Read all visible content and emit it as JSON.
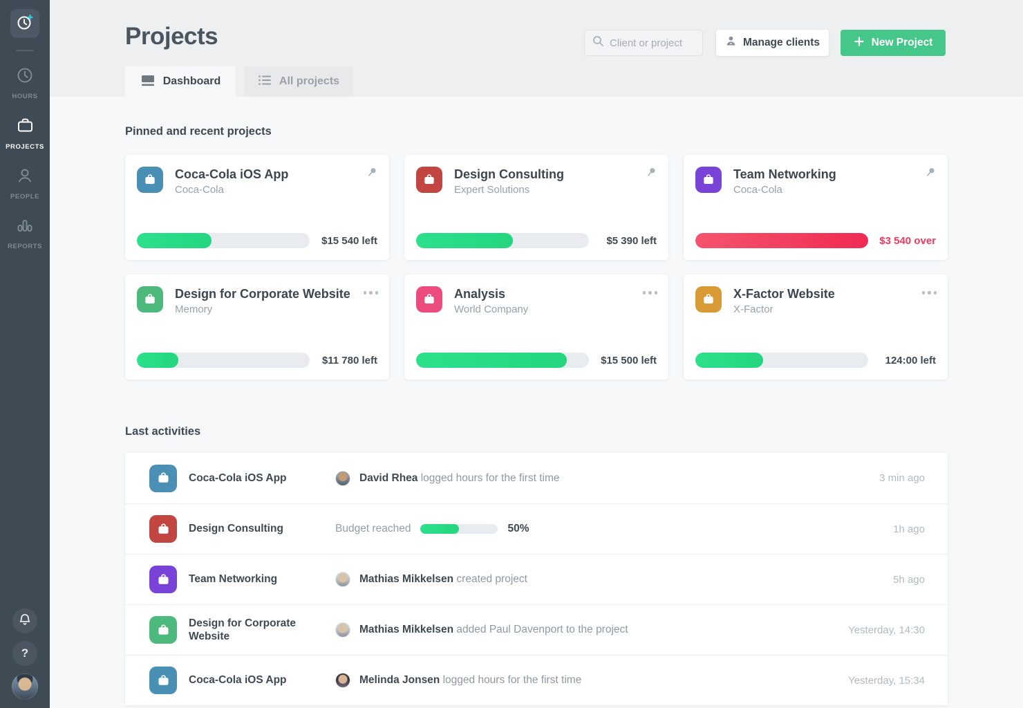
{
  "colors": {
    "sidebar_bg": "#3E4A54",
    "accent_green": "#45C789",
    "bar_green": "#29DC87",
    "bar_red": "#F02B53",
    "over_text": "#F23A5E",
    "logo_plus_cyan": "#36C6DD"
  },
  "icons": {
    "logo": "clock-plus-icon",
    "nav": [
      "clock-icon",
      "briefcase-icon",
      "person-icon",
      "bar-chart-icon"
    ],
    "bottom": [
      "bell-icon",
      "question-icon",
      "avatar"
    ],
    "search": "magnifier-icon",
    "manage": "person-icon",
    "new_project": "plus-icon",
    "tab_dashboard": "dashboard-icon",
    "tab_all": "list-icon",
    "card_pin": "pushpin-icon",
    "card_menu": "ellipsis-icon",
    "project_badge": "briefcase-icon"
  },
  "sidebar": {
    "items": [
      {
        "label": "HOURS",
        "active": false
      },
      {
        "label": "PROJECTS",
        "active": true
      },
      {
        "label": "PEOPLE",
        "active": false
      },
      {
        "label": "REPORTS",
        "active": false
      }
    ],
    "help_glyph": "?"
  },
  "header": {
    "title": "Projects",
    "search_placeholder": "Client or project",
    "manage_clients_label": "Manage clients",
    "new_project_label": "New Project"
  },
  "tabs": [
    {
      "label": "Dashboard",
      "active": true
    },
    {
      "label": "All projects",
      "active": false
    }
  ],
  "pinned": {
    "heading": "Pinned and recent projects",
    "cards": [
      {
        "name": "Coca-Cola iOS App",
        "client": "Coca-Cola",
        "icon_color": "#4A90B5",
        "percent": 43,
        "status": "$15 540 left",
        "bar_class": "green",
        "status_class": "left",
        "control": "pin"
      },
      {
        "name": "Design Consulting",
        "client": "Expert Solutions",
        "icon_color": "#C14541",
        "percent": 56,
        "status": "$5 390 left",
        "bar_class": "green",
        "status_class": "left",
        "control": "pin"
      },
      {
        "name": "Team Networking",
        "client": "Coca-Cola",
        "icon_color": "#7A43D8",
        "percent": 100,
        "status": "$3 540 over",
        "bar_class": "red",
        "status_class": "over",
        "control": "pin"
      },
      {
        "name": "Design for Corporate Website",
        "client": "Memory",
        "icon_color": "#4DB97D",
        "percent": 24,
        "status": "$11 780 left",
        "bar_class": "green",
        "status_class": "left",
        "control": "menu"
      },
      {
        "name": "Analysis",
        "client": "World Company",
        "icon_color": "#EC4B7D",
        "percent": 87,
        "status": "$15 500 left",
        "bar_class": "green",
        "status_class": "left",
        "control": "menu"
      },
      {
        "name": "X-Factor Website",
        "client": "X-Factor",
        "icon_color": "#D79A35",
        "percent": 39,
        "status": "124:00 left",
        "bar_class": "green",
        "status_class": "left",
        "control": "menu"
      }
    ]
  },
  "activities": {
    "heading": "Last activities",
    "rows": [
      {
        "project": "Coca-Cola iOS App",
        "icon_color": "#4A90B5",
        "actor": "David Rhea",
        "action": "logged hours for the first time",
        "time": "3 min ago"
      },
      {
        "project": "Design Consulting",
        "icon_color": "#C14541",
        "label": "Budget reached",
        "percent": 50,
        "percent_label": "50%",
        "time": "1h ago"
      },
      {
        "project": "Team Networking",
        "icon_color": "#7A43D8",
        "actor": "Mathias Mikkelsen",
        "action": "created project",
        "time": "5h ago"
      },
      {
        "project": "Design for Corporate Website",
        "icon_color": "#4DB97D",
        "actor": "Mathias Mikkelsen",
        "action": "added Paul Davenport to the project",
        "time": "Yesterday, 14:30"
      },
      {
        "project": "Coca-Cola iOS App",
        "icon_color": "#4A90B5",
        "actor": "Melinda Jonsen",
        "action": "logged hours for the first time",
        "time": "Yesterday, 15:34"
      }
    ]
  }
}
